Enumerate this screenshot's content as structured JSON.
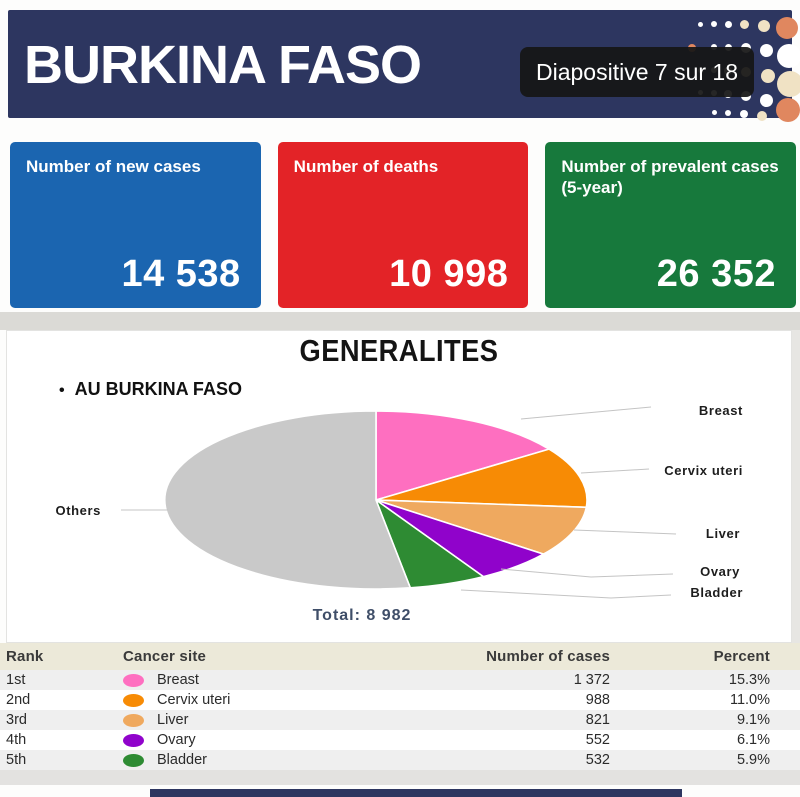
{
  "header": {
    "title": "BURKINA FASO",
    "slide_counter": "Diapositive 7 sur 18",
    "background_color": "#2d3660"
  },
  "cards": [
    {
      "label": "Number of new cases",
      "value": "14 538",
      "color": "#1b65b0"
    },
    {
      "label": "Number of deaths",
      "value": "10 998",
      "color": "#e32327"
    },
    {
      "label": "Number of prevalent cases (5-year)",
      "value": "26 352",
      "color": "#17793c"
    }
  ],
  "section": {
    "title": "GENERALITES",
    "bullet_marker": "•",
    "bullet": "AU BURKINA FASO",
    "total_label": "Total: 8 982"
  },
  "chart_data": {
    "type": "pie",
    "title": "GENERALITES",
    "total": 8982,
    "legend_position": "outside-labels",
    "slices": [
      {
        "label": "Breast",
        "value": 1372,
        "percent": 15.3,
        "color": "#fe6fc0"
      },
      {
        "label": "Cervix uteri",
        "value": 988,
        "percent": 11.0,
        "color": "#f78b05"
      },
      {
        "label": "Liver",
        "value": 821,
        "percent": 9.1,
        "color": "#efa95f"
      },
      {
        "label": "Ovary",
        "value": 552,
        "percent": 6.1,
        "color": "#9003cb"
      },
      {
        "label": "Bladder",
        "value": 532,
        "percent": 5.9,
        "color": "#2e8b33"
      },
      {
        "label": "Others",
        "value": 4717,
        "percent": 52.6,
        "color": "#c9c9c9"
      }
    ]
  },
  "table": {
    "headers": [
      "Rank",
      "Cancer site",
      "Number of cases",
      "Percent"
    ],
    "rows": [
      {
        "rank": "1st",
        "site": "Breast",
        "cases": "1 372",
        "percent": "15.3%",
        "color": "#fe6fc0"
      },
      {
        "rank": "2nd",
        "site": "Cervix uteri",
        "cases": "988",
        "percent": "11.0%",
        "color": "#f78b05"
      },
      {
        "rank": "3rd",
        "site": "Liver",
        "cases": "821",
        "percent": "9.1%",
        "color": "#efa95f"
      },
      {
        "rank": "4th",
        "site": "Ovary",
        "cases": "552",
        "percent": "6.1%",
        "color": "#9003cb"
      },
      {
        "rank": "5th",
        "site": "Bladder",
        "cases": "532",
        "percent": "5.9%",
        "color": "#2e8b33"
      }
    ]
  },
  "decor": {
    "dot_colors": {
      "white": "#ffffff",
      "cream": "#f0e2c4",
      "orange": "#e0875f"
    }
  }
}
